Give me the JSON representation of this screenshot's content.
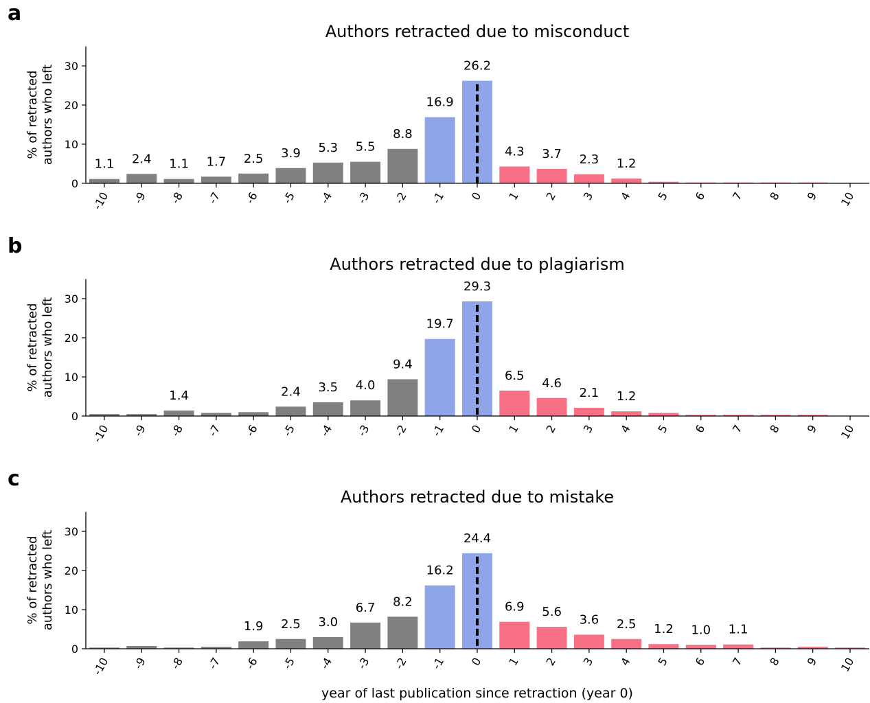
{
  "figure": {
    "xlabel": "year of last publication since retraction (year 0)",
    "colors": {
      "before": "#808080",
      "year_minus_1_and_0": "#8EA6E8",
      "after": "#F87085",
      "dashed_line": "#000000"
    }
  },
  "chart_data": [
    {
      "type": "bar",
      "panel_letter": "a",
      "title": "Authors retracted due to misconduct",
      "ylabel": "% of retracted authors who left",
      "ylim": [
        0,
        35
      ],
      "yticks": [
        0,
        10,
        20,
        30
      ],
      "categories": [
        "-10",
        "-9",
        "-8",
        "-7",
        "-6",
        "-5",
        "-4",
        "-3",
        "-2",
        "-1",
        "0",
        "1",
        "2",
        "3",
        "4",
        "5",
        "6",
        "7",
        "8",
        "9",
        "10"
      ],
      "values": [
        1.1,
        2.4,
        1.1,
        1.7,
        2.5,
        3.9,
        5.3,
        5.5,
        8.8,
        16.9,
        26.2,
        4.3,
        3.7,
        2.3,
        1.2,
        0.4,
        0.2,
        0.2,
        0.2,
        0.2,
        0.1
      ],
      "labels": [
        "1.1",
        "2.4",
        "1.1",
        "1.7",
        "2.5",
        "3.9",
        "5.3",
        "5.5",
        "8.8",
        "16.9",
        "26.2",
        "4.3",
        "3.7",
        "2.3",
        "1.2",
        "",
        "",
        "",
        "",
        "",
        ""
      ],
      "reference_line_x": "0"
    },
    {
      "type": "bar",
      "panel_letter": "b",
      "title": "Authors retracted due to plagiarism",
      "ylabel": "% of retracted authors who left",
      "ylim": [
        0,
        35
      ],
      "yticks": [
        0,
        10,
        20,
        30
      ],
      "categories": [
        "-10",
        "-9",
        "-8",
        "-7",
        "-6",
        "-5",
        "-4",
        "-3",
        "-2",
        "-1",
        "0",
        "1",
        "2",
        "3",
        "4",
        "5",
        "6",
        "7",
        "8",
        "9",
        "10"
      ],
      "values": [
        0.5,
        0.5,
        1.4,
        0.8,
        1.0,
        2.4,
        3.5,
        4.0,
        9.4,
        19.7,
        29.3,
        6.5,
        4.6,
        2.1,
        1.2,
        0.8,
        0.3,
        0.3,
        0.3,
        0.3,
        0.1
      ],
      "labels": [
        "",
        "",
        "1.4",
        "",
        "",
        "2.4",
        "3.5",
        "4.0",
        "9.4",
        "19.7",
        "29.3",
        "6.5",
        "4.6",
        "2.1",
        "1.2",
        "",
        "",
        "",
        "",
        "",
        ""
      ],
      "reference_line_x": "0"
    },
    {
      "type": "bar",
      "panel_letter": "c",
      "title": "Authors retracted due to mistake",
      "ylabel": "% of retracted authors who left",
      "ylim": [
        0,
        35
      ],
      "yticks": [
        0,
        10,
        20,
        30
      ],
      "categories": [
        "-10",
        "-9",
        "-8",
        "-7",
        "-6",
        "-5",
        "-4",
        "-3",
        "-2",
        "-1",
        "0",
        "1",
        "2",
        "3",
        "4",
        "5",
        "6",
        "7",
        "8",
        "9",
        "10"
      ],
      "values": [
        0.3,
        0.7,
        0.3,
        0.5,
        1.9,
        2.5,
        3.0,
        6.7,
        8.2,
        16.2,
        24.4,
        6.9,
        5.6,
        3.6,
        2.5,
        1.2,
        1.0,
        1.1,
        0.3,
        0.5,
        0.3
      ],
      "labels": [
        "",
        "",
        "",
        "",
        "1.9",
        "2.5",
        "3.0",
        "6.7",
        "8.2",
        "16.2",
        "24.4",
        "6.9",
        "5.6",
        "3.6",
        "2.5",
        "1.2",
        "1.0",
        "1.1",
        "",
        "",
        ""
      ],
      "reference_line_x": "0"
    }
  ]
}
